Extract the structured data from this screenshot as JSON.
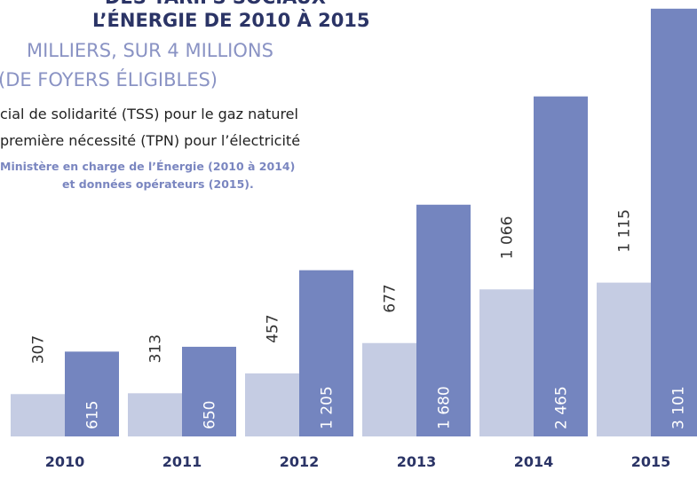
{
  "chart_data": {
    "type": "bar",
    "title_lines": [
      "DES TARIFS SOCIAUX",
      "L’ÉNERGIE DE 2010 À 2015"
    ],
    "subtitle_lines": [
      "MILLIERS, SUR 4 MILLIONS",
      "(DE FOYERS ÉLIGIBLES)"
    ],
    "source_lines": [
      "Ministère en charge de l’Énergie (2010 à 2014)",
      "et données opérateurs (2015)."
    ],
    "categories": [
      "2010",
      "2011",
      "2012",
      "2013",
      "2014",
      "2015"
    ],
    "series": [
      {
        "name": "cial de solidarité (TSS) pour le gaz naturel",
        "color": "#c5cce3",
        "values": [
          307,
          313,
          457,
          677,
          1066,
          1115
        ],
        "value_labels": [
          "307",
          "313",
          "457",
          "677",
          "1 066",
          "1 115"
        ]
      },
      {
        "name": "première nécessité (TPN) pour l’électricité",
        "color": "#7485bf",
        "values": [
          615,
          650,
          1205,
          1680,
          2465,
          3101
        ],
        "value_labels": [
          "615",
          "650",
          "1 205",
          "1 680",
          "2 465",
          "3 101"
        ]
      }
    ]
  }
}
